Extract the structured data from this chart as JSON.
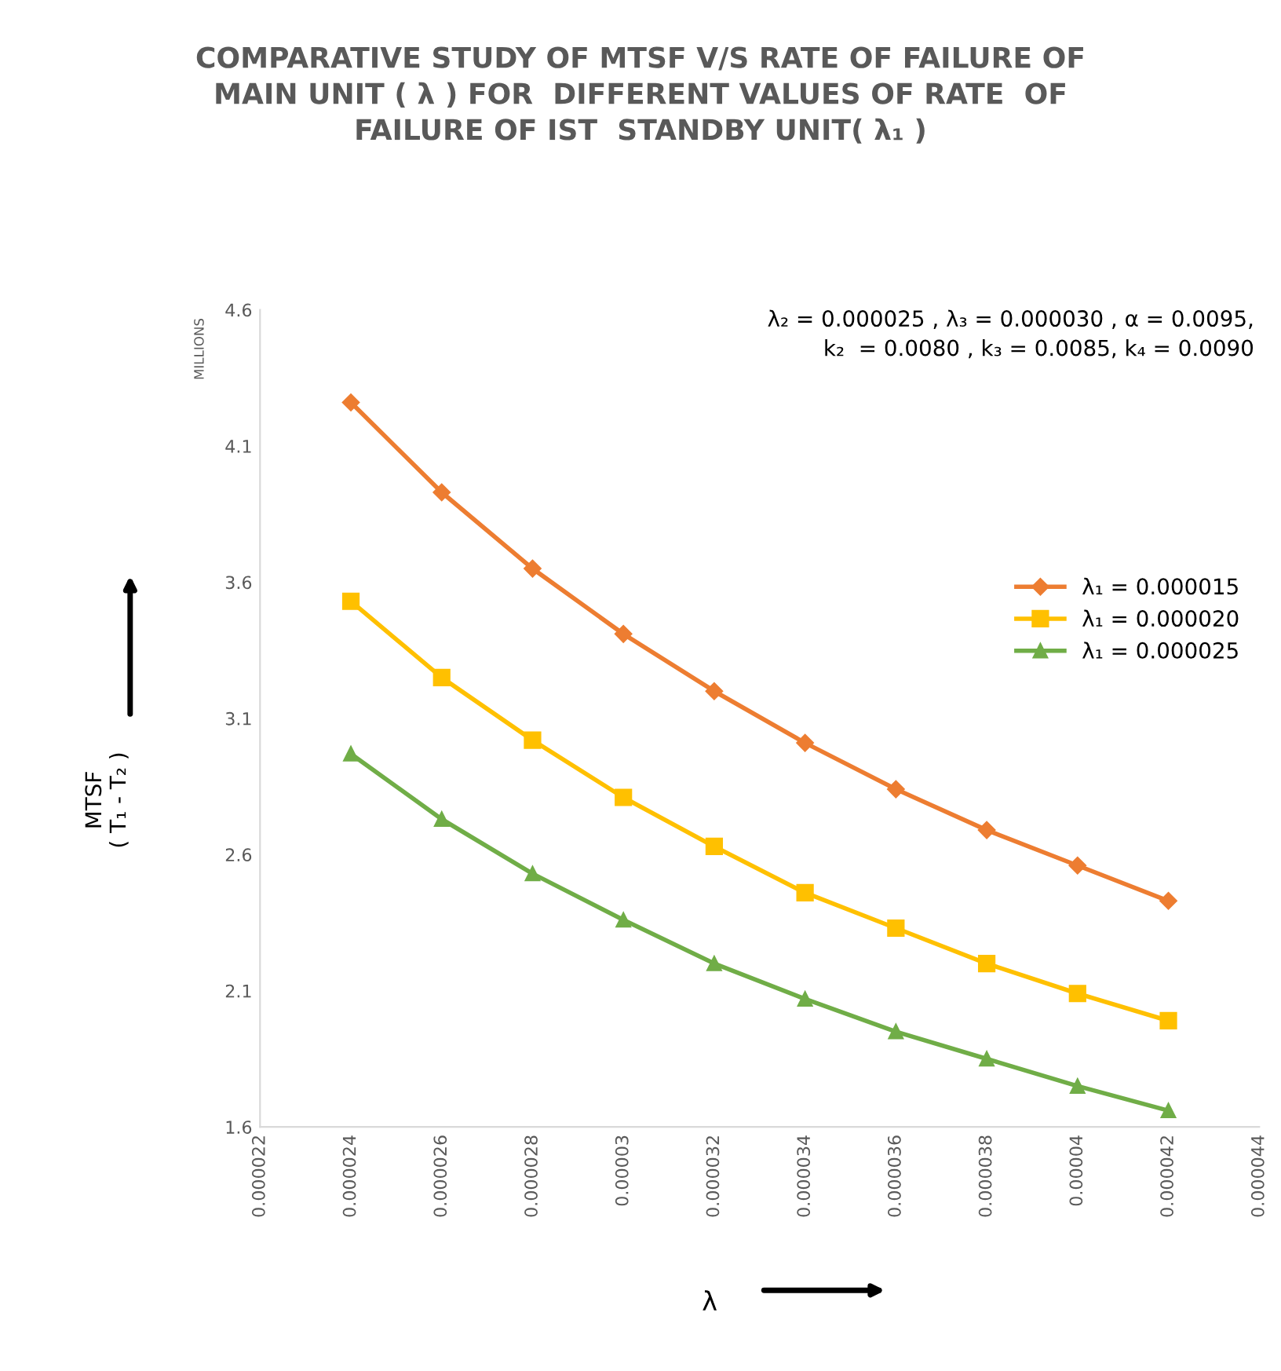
{
  "chart_data": {
    "type": "line",
    "title": "COMPARATIVE STUDY OF MTSF V/S RATE OF FAILURE OF\nMAIN UNIT ( λ ) FOR  DIFFERENT VALUES OF RATE  OF\nFAILURE OF IST  STANDBY UNIT( λ₁ )",
    "xlabel": "λ",
    "ylabel": "MTSF\n( T₁ - T₂ )",
    "annotations": [
      "λ₂ = 0.000025 , λ₃ = 0.000030 , α = 0.0095,\nk₂  = 0.0080 , k₃ = 0.0085, k₄ = 0.0090",
      "MILLIONS"
    ],
    "x": [
      2.4e-05,
      2.6e-05,
      2.8e-05,
      3e-05,
      3.2e-05,
      3.4e-05,
      3.6e-05,
      3.8e-05,
      4e-05,
      4.2e-05
    ],
    "series": [
      {
        "name": "λ₁ = 0.000015",
        "color": "#ed7d31",
        "marker": "diamond",
        "values": [
          4.26,
          3.93,
          3.65,
          3.41,
          3.2,
          3.01,
          2.84,
          2.69,
          2.56,
          2.43
        ]
      },
      {
        "name": "λ₁ = 0.000020",
        "color": "#ffc000",
        "marker": "square",
        "values": [
          3.53,
          3.25,
          3.02,
          2.81,
          2.63,
          2.46,
          2.33,
          2.2,
          2.09,
          1.99
        ]
      },
      {
        "name": "λ₁ = 0.000025",
        "color": "#70ad47",
        "marker": "triangle",
        "values": [
          2.97,
          2.73,
          2.53,
          2.36,
          2.2,
          2.07,
          1.95,
          1.85,
          1.75,
          1.66
        ]
      }
    ],
    "xlim": [
      2.2e-05,
      4.4e-05
    ],
    "xticks": [
      {
        "value": 2.2e-05,
        "label": "0.000022"
      },
      {
        "value": 2.4e-05,
        "label": "0.000024"
      },
      {
        "value": 2.6e-05,
        "label": "0.000026"
      },
      {
        "value": 2.8e-05,
        "label": "0.000028"
      },
      {
        "value": 3e-05,
        "label": "0.00003"
      },
      {
        "value": 3.2e-05,
        "label": "0.000032"
      },
      {
        "value": 3.4e-05,
        "label": "0.000034"
      },
      {
        "value": 3.6e-05,
        "label": "0.000036"
      },
      {
        "value": 3.8e-05,
        "label": "0.000038"
      },
      {
        "value": 4e-05,
        "label": "0.00004"
      },
      {
        "value": 4.2e-05,
        "label": "0.000042"
      },
      {
        "value": 4.4e-05,
        "label": "0.000044"
      }
    ],
    "ylim": [
      1.6,
      4.6
    ],
    "yticks": [
      1.6,
      2.1,
      2.6,
      3.1,
      3.6,
      4.1,
      4.6
    ],
    "grid": false,
    "legend": "right",
    "line_style": "solid"
  }
}
